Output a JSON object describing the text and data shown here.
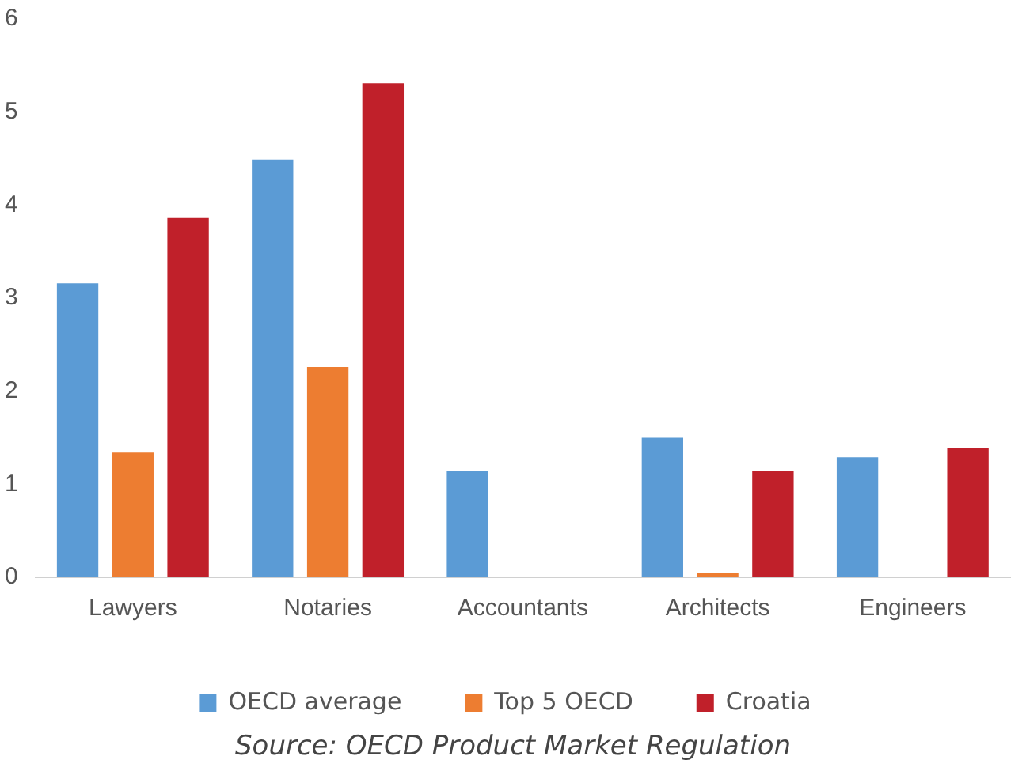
{
  "chart_data": {
    "type": "bar",
    "categories": [
      "Lawyers",
      "Notaries",
      "Accountants",
      "Architects",
      "Engineers"
    ],
    "series": [
      {
        "name": "OECD average",
        "color": "#5b9bd5",
        "values": [
          3.16,
          4.49,
          1.14,
          1.5,
          1.29
        ]
      },
      {
        "name": "Top 5 OECD",
        "color": "#ed7d31",
        "values": [
          1.34,
          2.26,
          null,
          0.05,
          null
        ]
      },
      {
        "name": "Croatia",
        "color": "#c0202a",
        "values": [
          3.86,
          5.31,
          null,
          1.14,
          1.39
        ]
      }
    ],
    "ylim": [
      0,
      6
    ],
    "yticks": [
      0,
      1,
      2,
      3,
      4,
      5,
      6
    ],
    "grid": false,
    "legend": "bottom",
    "annotations": [
      "Source: OECD Product Market Regulation"
    ]
  }
}
